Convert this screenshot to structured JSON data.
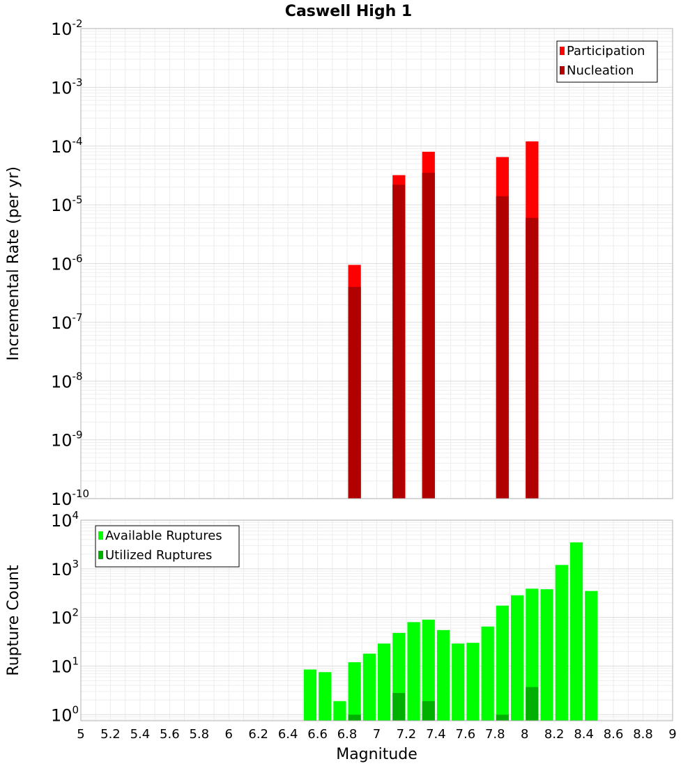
{
  "title": "Caswell High 1",
  "chart_data": [
    {
      "type": "bar",
      "scale": "log",
      "ylabel": "Incremental Rate (per yr)",
      "ylim": [
        1e-10,
        0.01
      ],
      "xlim": [
        5,
        9
      ],
      "bin_width": 0.1,
      "legend_position": "top-right",
      "y_ticks": [
        {
          "base": "10",
          "exp": "-10"
        },
        {
          "base": "10",
          "exp": "-9"
        },
        {
          "base": "10",
          "exp": "-8"
        },
        {
          "base": "10",
          "exp": "-7"
        },
        {
          "base": "10",
          "exp": "-6"
        },
        {
          "base": "10",
          "exp": "-5"
        },
        {
          "base": "10",
          "exp": "-4"
        },
        {
          "base": "10",
          "exp": "-3"
        },
        {
          "base": "10",
          "exp": "-2"
        }
      ],
      "series": [
        {
          "name": "Participation",
          "color": "#ff0000",
          "points": [
            {
              "x": 6.85,
              "y": 9.5e-07
            },
            {
              "x": 7.15,
              "y": 3.2e-05
            },
            {
              "x": 7.35,
              "y": 8e-05
            },
            {
              "x": 7.85,
              "y": 6.5e-05
            },
            {
              "x": 8.05,
              "y": 0.00012
            }
          ]
        },
        {
          "name": "Nucleation",
          "color": "#b00000",
          "points": [
            {
              "x": 6.85,
              "y": 4e-07
            },
            {
              "x": 7.15,
              "y": 2.2e-05
            },
            {
              "x": 7.35,
              "y": 3.5e-05
            },
            {
              "x": 7.85,
              "y": 1.4e-05
            },
            {
              "x": 8.05,
              "y": 6e-06
            }
          ]
        }
      ]
    },
    {
      "type": "bar",
      "scale": "log",
      "ylabel": "Rupture Count",
      "xlabel": "Magnitude",
      "ylim": [
        0.75,
        10000
      ],
      "xlim": [
        5,
        9
      ],
      "bin_width": 0.1,
      "legend_position": "top-left",
      "y_ticks": [
        {
          "base": "10",
          "exp": "0"
        },
        {
          "base": "10",
          "exp": "1"
        },
        {
          "base": "10",
          "exp": "2"
        },
        {
          "base": "10",
          "exp": "3"
        },
        {
          "base": "10",
          "exp": "4"
        }
      ],
      "x_ticks": [
        "5",
        "5.2",
        "5.4",
        "5.6",
        "5.8",
        "6",
        "6.2",
        "6.4",
        "6.6",
        "6.8",
        "7",
        "7.2",
        "7.4",
        "7.6",
        "7.8",
        "8",
        "8.2",
        "8.4",
        "8.6",
        "8.8",
        "9"
      ],
      "series": [
        {
          "name": "Available Ruptures",
          "color": "#00ff00",
          "points": [
            {
              "x": 6.55,
              "y": 8.5
            },
            {
              "x": 6.65,
              "y": 7.5
            },
            {
              "x": 6.75,
              "y": 1.9
            },
            {
              "x": 6.85,
              "y": 12
            },
            {
              "x": 6.95,
              "y": 18
            },
            {
              "x": 7.05,
              "y": 29
            },
            {
              "x": 7.15,
              "y": 48
            },
            {
              "x": 7.25,
              "y": 80
            },
            {
              "x": 7.35,
              "y": 90
            },
            {
              "x": 7.45,
              "y": 55
            },
            {
              "x": 7.55,
              "y": 29
            },
            {
              "x": 7.65,
              "y": 30
            },
            {
              "x": 7.75,
              "y": 65
            },
            {
              "x": 7.85,
              "y": 175
            },
            {
              "x": 7.95,
              "y": 285
            },
            {
              "x": 8.05,
              "y": 390
            },
            {
              "x": 8.15,
              "y": 380
            },
            {
              "x": 8.25,
              "y": 1200
            },
            {
              "x": 8.35,
              "y": 3500
            },
            {
              "x": 8.45,
              "y": 350
            }
          ]
        },
        {
          "name": "Utilized Ruptures",
          "color": "#00b000",
          "points": [
            {
              "x": 6.85,
              "y": 1
            },
            {
              "x": 7.15,
              "y": 2.8
            },
            {
              "x": 7.35,
              "y": 1.9
            },
            {
              "x": 7.85,
              "y": 1
            },
            {
              "x": 8.05,
              "y": 3.7
            }
          ]
        }
      ]
    }
  ]
}
